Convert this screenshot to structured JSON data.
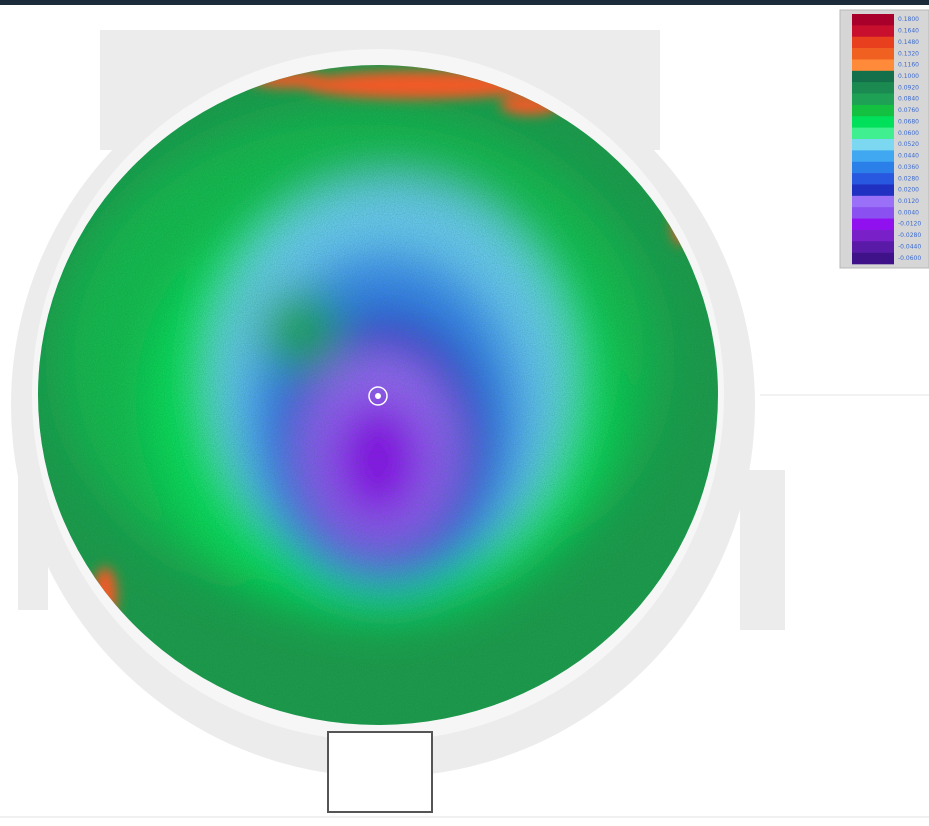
{
  "legend": {
    "entries": [
      {
        "label": "0.1800",
        "color": "#a8002a"
      },
      {
        "label": "0.1640",
        "color": "#c8102e"
      },
      {
        "label": "0.1480",
        "color": "#e8401e"
      },
      {
        "label": "0.1320",
        "color": "#f06020"
      },
      {
        "label": "0.1160",
        "color": "#ff8a3a"
      },
      {
        "label": "0.1000",
        "color": "#14704a"
      },
      {
        "label": "0.0920",
        "color": "#1a8a50"
      },
      {
        "label": "0.0840",
        "color": "#1ea055"
      },
      {
        "label": "0.0760",
        "color": "#14c040"
      },
      {
        "label": "0.0680",
        "color": "#00e05a"
      },
      {
        "label": "0.0600",
        "color": "#40f090"
      },
      {
        "label": "0.0520",
        "color": "#7cd8f0"
      },
      {
        "label": "0.0440",
        "color": "#40a8f0"
      },
      {
        "label": "0.0360",
        "color": "#2a80e8"
      },
      {
        "label": "0.0280",
        "color": "#2858e0"
      },
      {
        "label": "0.0200",
        "color": "#2030c0"
      },
      {
        "label": "0.0120",
        "color": "#9a70f8"
      },
      {
        "label": "0.0040",
        "color": "#8a50f0"
      },
      {
        "label": "-0.0120",
        "color": "#9010f0"
      },
      {
        "label": "-0.0280",
        "color": "#7a20c8"
      },
      {
        "label": "-0.0440",
        "color": "#5a1aa8"
      },
      {
        "label": "-0.0600",
        "color": "#40128a"
      }
    ]
  }
}
